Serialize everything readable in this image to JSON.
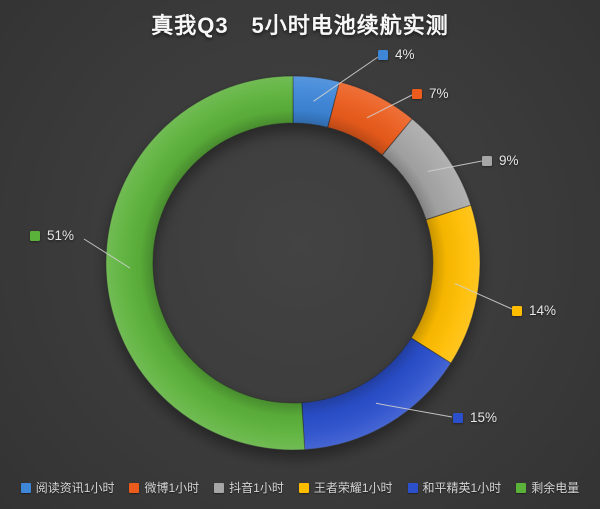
{
  "title": "真我Q3　5小时电池续航实测",
  "chart_data": {
    "type": "pie",
    "subtype": "donut",
    "title": "真我Q3　5小时电池续航实测",
    "categories": [
      "阅读资讯1小时",
      "微博1小时",
      "抖音1小时",
      "王者荣耀1小时",
      "和平精英1小时",
      "剩余电量"
    ],
    "values": [
      4,
      7,
      9,
      14,
      15,
      51
    ],
    "data_labels": [
      "4%",
      "7%",
      "9%",
      "14%",
      "15%",
      "51%"
    ],
    "colors": [
      "#3E86D8",
      "#EB5B1C",
      "#A6A6A6",
      "#FFBD00",
      "#2C50CC",
      "#5BB23A"
    ],
    "unit": "percent",
    "start_angle_deg": 0,
    "direction": "clockwise",
    "hole_ratio": 0.75,
    "legend_position": "bottom",
    "background_color": "#3B3B3B",
    "label_color": "#E6E6E6",
    "leader_line_color": "#CFCFCF",
    "title_color": "#F7F7F7"
  }
}
